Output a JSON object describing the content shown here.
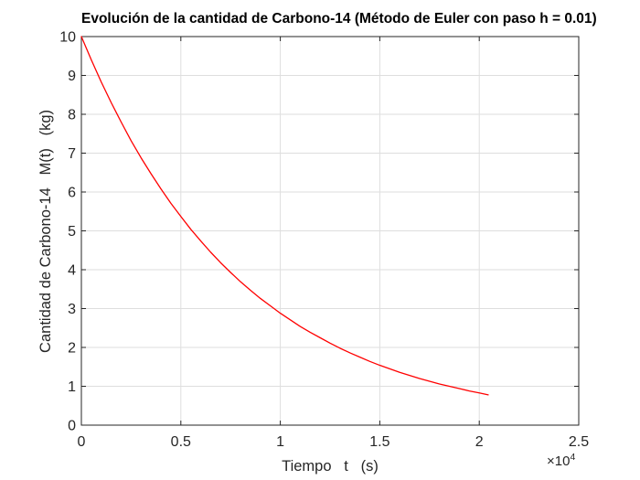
{
  "figure": {
    "background": "#ffffff"
  },
  "chart_data": {
    "type": "line",
    "title": "Evolución de la cantidad de Carbono-14 (Método de Euler con paso h = 0.01)",
    "xlabel": "Tiempo   t   (s)",
    "ylabel": "Cantidad de Carbono-14   M(t)   (kg)",
    "x_multiplier_base": "×10",
    "x_multiplier_exp": "4",
    "xlim": [
      0,
      2.5
    ],
    "ylim": [
      0,
      10
    ],
    "xticks": [
      0,
      0.5,
      1,
      1.5,
      2,
      2.5
    ],
    "yticks": [
      0,
      1,
      2,
      3,
      4,
      5,
      6,
      7,
      8,
      9,
      10
    ],
    "grid": true,
    "legend_position": "none",
    "axis_color": "#262626",
    "grid_color": "#dedede",
    "tick_label_color": "#262626",
    "series": [
      {
        "name": "M(t)",
        "color": "#ff0000",
        "x": [
          0,
          0.05,
          0.1,
          0.15,
          0.2,
          0.25,
          0.3,
          0.35,
          0.4,
          0.45,
          0.5,
          0.55,
          0.6,
          0.65,
          0.7,
          0.75,
          0.8,
          0.85,
          0.9,
          0.95,
          1.0,
          1.05,
          1.1,
          1.15,
          1.2,
          1.25,
          1.3,
          1.35,
          1.4,
          1.45,
          1.5,
          1.55,
          1.6,
          1.65,
          1.7,
          1.75,
          1.8,
          1.85,
          1.9,
          1.95,
          2.0,
          2.045
        ],
        "y": [
          10,
          9.4,
          8.83,
          8.3,
          7.8,
          7.32,
          6.88,
          6.47,
          6.08,
          5.71,
          5.37,
          5.04,
          4.74,
          4.45,
          4.18,
          3.93,
          3.69,
          3.47,
          3.26,
          3.07,
          2.88,
          2.71,
          2.54,
          2.39,
          2.25,
          2.11,
          1.98,
          1.86,
          1.75,
          1.64,
          1.54,
          1.45,
          1.36,
          1.28,
          1.2,
          1.13,
          1.06,
          1.0,
          0.94,
          0.88,
          0.83,
          0.78
        ]
      }
    ]
  }
}
